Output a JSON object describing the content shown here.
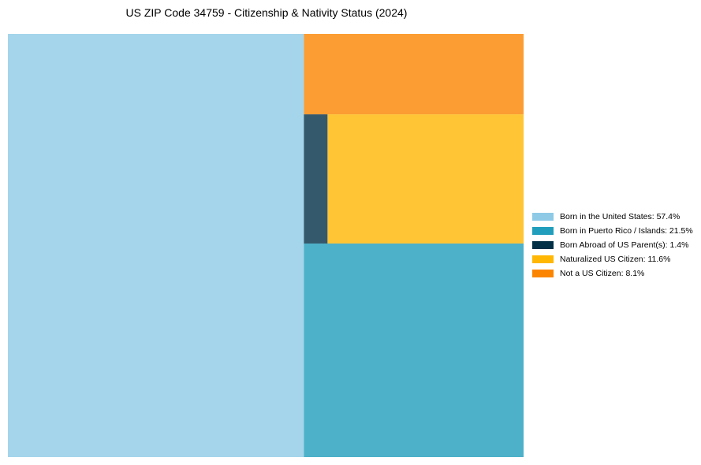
{
  "chart_data": {
    "type": "treemap",
    "title": "US ZIP Code 34759 - Citizenship & Nativity Status (2024)",
    "items": [
      {
        "label": "Born in the United States",
        "value": 57.4,
        "color": "#8ecae6",
        "legend_label": "Born in the United States: 57.4%"
      },
      {
        "label": "Born in Puerto Rico / Islands",
        "value": 21.5,
        "color": "#219ebc",
        "legend_label": "Born in Puerto Rico / Islands: 21.5%"
      },
      {
        "label": "Born Abroad of US Parent(s)",
        "value": 1.4,
        "color": "#023047",
        "legend_label": "Born Abroad of US Parent(s): 1.4%"
      },
      {
        "label": "Naturalized US Citizen",
        "value": 11.6,
        "color": "#ffb703",
        "legend_label": "Naturalized US Citizen: 11.6%"
      },
      {
        "label": "Not a US Citizen",
        "value": 8.1,
        "color": "#fb8500",
        "legend_label": "Not a US Citizen: 8.1%"
      }
    ],
    "legend_position": "right"
  }
}
